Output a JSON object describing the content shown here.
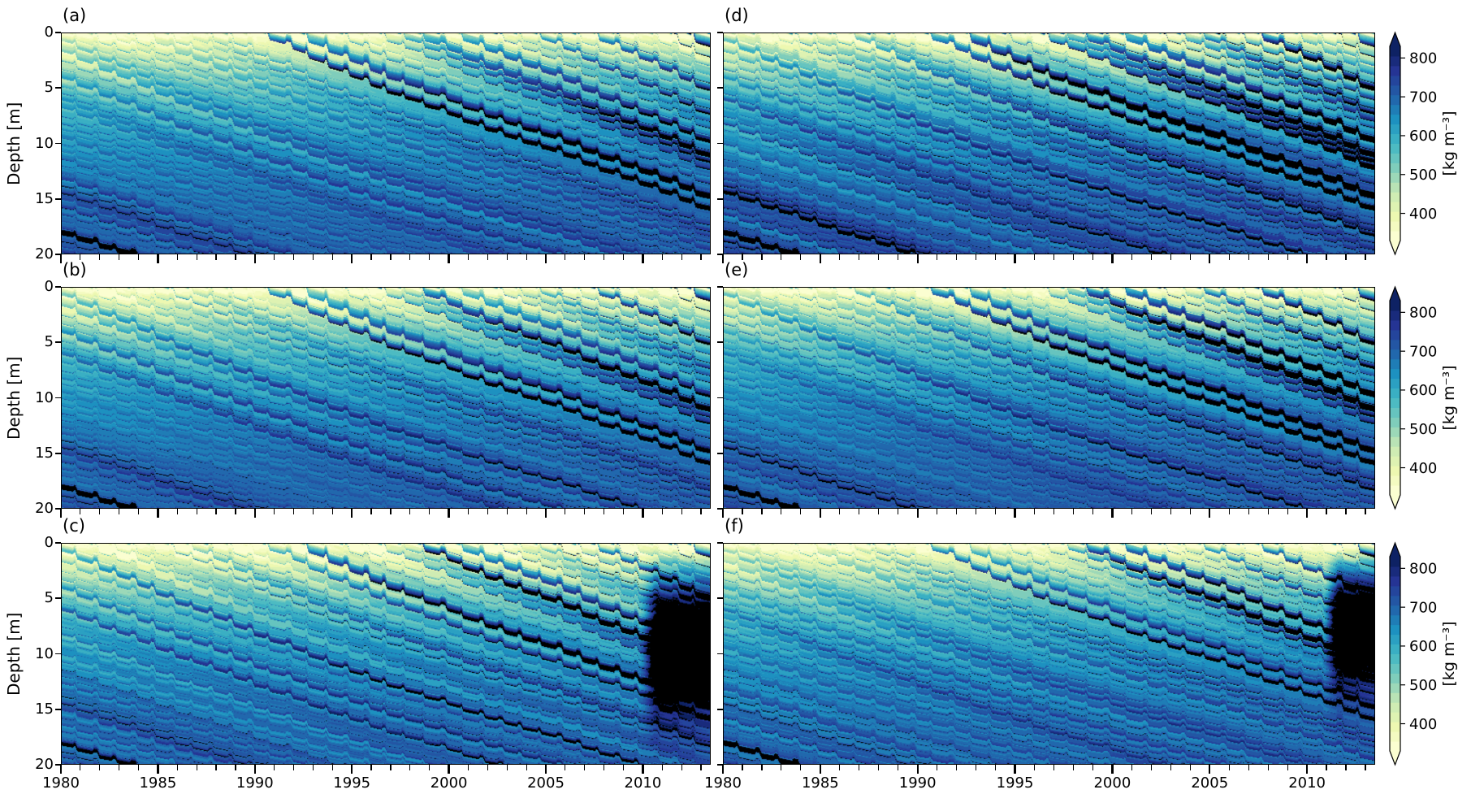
{
  "figure": {
    "kind": "scientific-multipanel-figure",
    "background": "#ffffff",
    "description": "Six-panel simulation of firn density evolution: depth vs. time contour plots (1980-2013.5, 0-20 m) in two columns of three rows, each row with a YlGnBu colorbar in kg per cubic metre. Black bands are high-density ice layers."
  },
  "chart_data": {
    "type": "heatmap",
    "title": "",
    "x": {
      "label": "",
      "range": [
        1980,
        2013.5
      ],
      "major_ticks": [
        1980,
        1985,
        1990,
        1995,
        2000,
        2005,
        2010
      ],
      "tick_labels": [
        "1980",
        "1985",
        "1990",
        "1995",
        "2000",
        "2005",
        "2010"
      ],
      "minor_tick_interval_years": 1
    },
    "y": {
      "label": "Depth [m]",
      "range": [
        0,
        20
      ],
      "inverted": true,
      "ticks": [
        0,
        5,
        10,
        15,
        20
      ],
      "tick_labels": [
        "0",
        "5",
        "10",
        "15",
        "20"
      ]
    },
    "colorbar": {
      "label": "[kg m⁻³]",
      "ticks": [
        400,
        500,
        600,
        700,
        800
      ],
      "tick_labels": [
        "400",
        "500",
        "600",
        "700",
        "800"
      ],
      "range": [
        330,
        830
      ],
      "extend": "both",
      "n_levels": 20,
      "level_step_kg_m3": 25,
      "colormap": "YlGnBu",
      "colormap_stops": [
        "#ffffd9",
        "#edf8b1",
        "#c7e9b4",
        "#7fcdbb",
        "#41b6c4",
        "#1d91c0",
        "#225ea8",
        "#253494",
        "#081d58"
      ],
      "ice_layer_color": "#000000",
      "ice_layer_threshold_kg_m3": 822
    },
    "field_structure": {
      "surface_density_kg_m3": 330,
      "deep_density_20m_kg_m3": 705,
      "layer_sink_rate_m_per_yr": 0.8,
      "seasonal_sawtooth_amplitude_m": 0.7,
      "legacy_ice_layers_1980": [
        {
          "depth_m": 14,
          "note": "thick black band, exits 20 m near 1988-1991"
        },
        {
          "depth_m": 18,
          "note": "thick black band, exits 20 m near 1983"
        }
      ],
      "trend": "Melt-layer density and frequency increase from the mid-1980s onward; black layers dominate the upper firn after ~2005."
    },
    "panels": [
      {
        "id": "a",
        "label": "(a)",
        "row": 0,
        "col": 0,
        "show_x_tick_labels": false,
        "show_y_tick_labels": true,
        "description": "Prominent black high-density band descending from ~2 m in the early 1990s to ~15 m by 2013; legacy ice layers at 14-20 m on the left.",
        "render": {
          "seed": 11,
          "scale": 0.85,
          "w": 0.13,
          "dbl": 0.45,
          "calm": 0.75,
          "noise": 1.0,
          "blob": null
        }
      },
      {
        "id": "b",
        "label": "(b)",
        "row": 1,
        "col": 0,
        "show_x_tick_labels": false,
        "show_y_tick_labels": true,
        "description": "Cluster of many parallel thin black ice layers in the upper 5-12 m after ~1990; smooth mid-blue firn beneath the band.",
        "render": {
          "seed": 22,
          "scale": 0.95,
          "w": 0.12,
          "dbl": 0.5,
          "calm": 0.35,
          "noise": 1.0,
          "blob": null
        }
      },
      {
        "id": "c",
        "label": "(c)",
        "row": 2,
        "col": 0,
        "show_x_tick_labels": true,
        "show_y_tick_labels": true,
        "description": "Numerous thin black ice layers; near-solid black high-density zone between ~2-16 m after ~2010.",
        "render": {
          "seed": 33,
          "scale": 1.0,
          "w": 0.1,
          "dbl": 0.85,
          "calm": 0.85,
          "noise": 1.1,
          "blob": {
            "start": 2009.8,
            "rise": 1.2,
            "center": 9,
            "width": 4.2,
            "strength": 430
          }
        }
      },
      {
        "id": "d",
        "label": "(d)",
        "row": 0,
        "col": 1,
        "show_x_tick_labels": false,
        "show_y_tick_labels": false,
        "description": "Strongest layering: black melt layers appear from the mid-1980s and persist to ~17 m depth at the right edge.",
        "render": {
          "seed": 44,
          "scale": 1.2,
          "w": 0.14,
          "dbl": 0.5,
          "calm": 0.8,
          "noise": 1.0,
          "blob": null
        }
      },
      {
        "id": "e",
        "label": "(e)",
        "row": 1,
        "col": 1,
        "show_x_tick_labels": false,
        "show_y_tick_labels": false,
        "description": "Similar to (d) with fewer deep layers; heavy black layering in the upper metres after ~2005 and smooth blue firn below ~10 m.",
        "render": {
          "seed": 55,
          "scale": 1.05,
          "w": 0.13,
          "dbl": 0.45,
          "calm": 0.35,
          "noise": 0.95,
          "blob": null
        }
      },
      {
        "id": "f",
        "label": "(f)",
        "row": 2,
        "col": 1,
        "show_x_tick_labels": true,
        "show_y_tick_labels": false,
        "description": "Thin black ice layers with a large solid black high-density zone from ~2011 in the upper ~10 m.",
        "render": {
          "seed": 66,
          "scale": 1.0,
          "w": 0.1,
          "dbl": 0.8,
          "calm": 0.85,
          "noise": 1.05,
          "blob": {
            "start": 2010.8,
            "rise": 1.0,
            "center": 7,
            "width": 3.8,
            "strength": 410
          }
        }
      }
    ]
  }
}
